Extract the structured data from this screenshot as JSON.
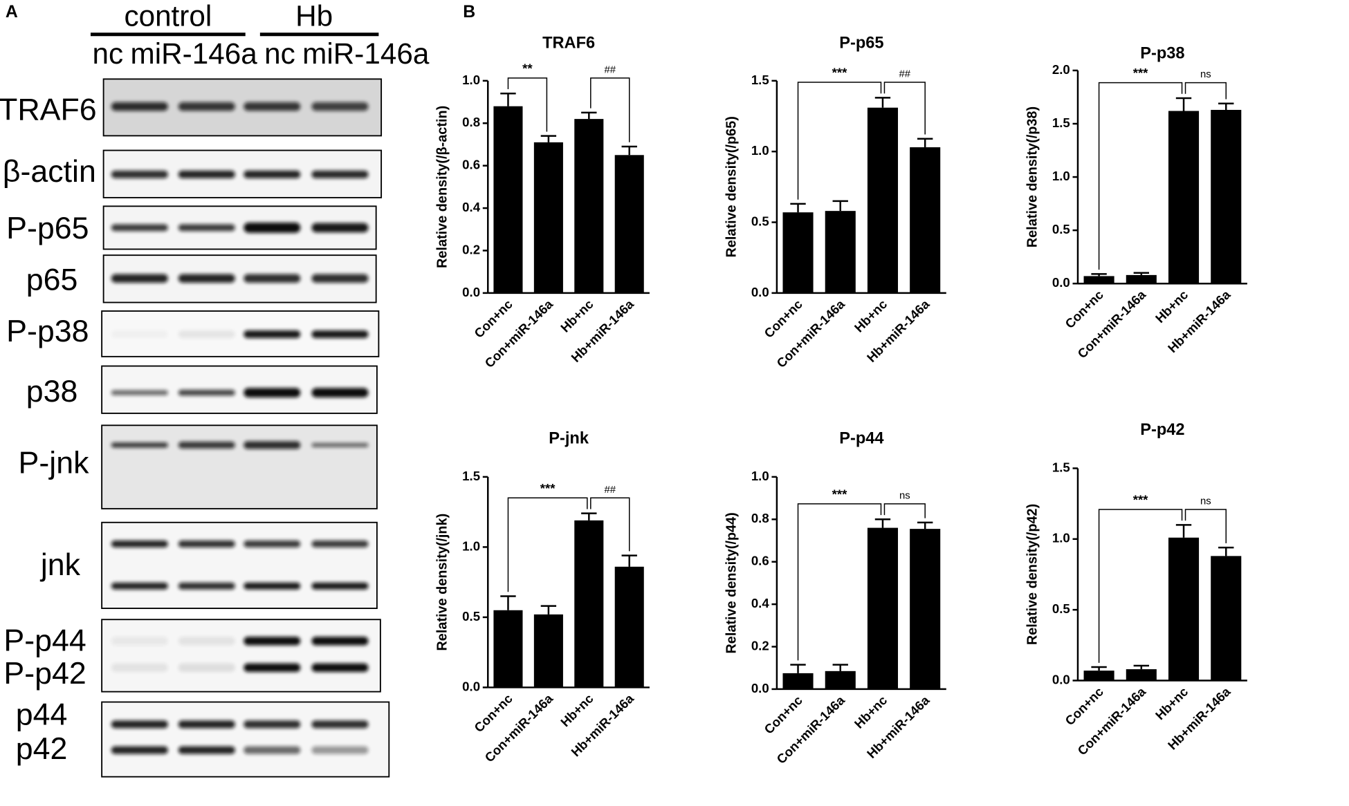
{
  "panel_a": {
    "label": "A",
    "groups": [
      "control",
      "Hb"
    ],
    "lanes": [
      "nc",
      "miR-146a",
      "nc",
      "miR-146a"
    ],
    "rows": [
      "TRAF6",
      "β-actin",
      "P-p65",
      "p65",
      "P-p38",
      "p38",
      "P-jnk",
      "jnk",
      "P-p44",
      "P-p42",
      "p44",
      "p42"
    ]
  },
  "panel_b": {
    "label": "B"
  },
  "chart_data": [
    {
      "type": "bar",
      "title": "TRAF6",
      "y_label": "Relative density(/β-actin)",
      "color": "#000000",
      "categories": [
        "Con+nc",
        "Con+miR-146a",
        "Hb+nc",
        "Hb+miR-146a"
      ],
      "values": [
        0.88,
        0.71,
        0.82,
        0.65
      ],
      "errors": [
        0.06,
        0.03,
        0.03,
        0.04
      ],
      "ylim": [
        0,
        1.0
      ],
      "yticks": [
        {
          "value": 0,
          "label": "0.0"
        },
        {
          "value": 0.2,
          "label": "0.2"
        },
        {
          "value": 0.4,
          "label": "0.4"
        },
        {
          "value": 0.6,
          "label": "0.6"
        },
        {
          "value": 0.8,
          "label": "0.8"
        },
        {
          "value": 1.0,
          "label": "1.0"
        }
      ],
      "annotations": [
        {
          "text": "**",
          "between": [
            "Con+nc",
            "Con+miR-146a"
          ]
        },
        {
          "text": "##",
          "between": [
            "Hb+nc",
            "Hb+miR-146a"
          ]
        }
      ]
    },
    {
      "type": "bar",
      "title": "P-p65",
      "y_label": "Relative density(/p65)",
      "color": "#000000",
      "categories": [
        "Con+nc",
        "Con+miR-146a",
        "Hb+nc",
        "Hb+miR-146a"
      ],
      "values": [
        0.57,
        0.58,
        1.31,
        1.03
      ],
      "errors": [
        0.06,
        0.07,
        0.07,
        0.06
      ],
      "ylim": [
        0,
        1.5
      ],
      "yticks": [
        {
          "value": 0,
          "label": "0.0"
        },
        {
          "value": 0.5,
          "label": "0.5"
        },
        {
          "value": 1.0,
          "label": "1.0"
        },
        {
          "value": 1.5,
          "label": "1.5"
        }
      ],
      "annotations": [
        {
          "text": "***",
          "between": [
            "Con+nc",
            "Hb+nc"
          ]
        },
        {
          "text": "##",
          "between": [
            "Hb+nc",
            "Hb+miR-146a"
          ]
        }
      ]
    },
    {
      "type": "bar",
      "title": "P-p38",
      "y_label": "Relative density(/p38)",
      "color": "#000000",
      "categories": [
        "Con+nc",
        "Con+miR-146a",
        "Hb+nc",
        "Hb+miR-146a"
      ],
      "values": [
        0.07,
        0.08,
        1.62,
        1.63
      ],
      "errors": [
        0.02,
        0.02,
        0.12,
        0.06
      ],
      "ylim": [
        0,
        2.0
      ],
      "yticks": [
        {
          "value": 0,
          "label": "0.0"
        },
        {
          "value": 0.5,
          "label": "0.5"
        },
        {
          "value": 1.0,
          "label": "1.0"
        },
        {
          "value": 1.5,
          "label": "1.5"
        },
        {
          "value": 2.0,
          "label": "2.0"
        }
      ],
      "annotations": [
        {
          "text": "***",
          "between": [
            "Con+nc",
            "Hb+nc"
          ]
        },
        {
          "text": "ns",
          "between": [
            "Hb+nc",
            "Hb+miR-146a"
          ]
        }
      ]
    },
    {
      "type": "bar",
      "title": "P-jnk",
      "y_label": "Relative density(/jnk)",
      "color": "#000000",
      "categories": [
        "Con+nc",
        "Con+miR-146a",
        "Hb+nc",
        "Hb+miR-146a"
      ],
      "values": [
        0.55,
        0.52,
        1.19,
        0.86
      ],
      "errors": [
        0.1,
        0.06,
        0.05,
        0.08
      ],
      "ylim": [
        0,
        1.5
      ],
      "yticks": [
        {
          "value": 0,
          "label": "0.0"
        },
        {
          "value": 0.5,
          "label": "0.5"
        },
        {
          "value": 1.0,
          "label": "1.0"
        },
        {
          "value": 1.5,
          "label": "1.5"
        }
      ],
      "annotations": [
        {
          "text": "***",
          "between": [
            "Con+nc",
            "Hb+nc"
          ]
        },
        {
          "text": "##",
          "between": [
            "Hb+nc",
            "Hb+miR-146a"
          ]
        }
      ]
    },
    {
      "type": "bar",
      "title": "P-p44",
      "y_label": "Relative density(/p44)",
      "color": "#000000",
      "categories": [
        "Con+nc",
        "Con+miR-146a",
        "Hb+nc",
        "Hb+miR-146a"
      ],
      "values": [
        0.075,
        0.085,
        0.76,
        0.755
      ],
      "errors": [
        0.04,
        0.03,
        0.04,
        0.03
      ],
      "ylim": [
        0,
        1.0
      ],
      "yticks": [
        {
          "value": 0,
          "label": "0.0"
        },
        {
          "value": 0.2,
          "label": "0.2"
        },
        {
          "value": 0.4,
          "label": "0.4"
        },
        {
          "value": 0.6,
          "label": "0.6"
        },
        {
          "value": 0.8,
          "label": "0.8"
        },
        {
          "value": 1.0,
          "label": "1.0"
        }
      ],
      "annotations": [
        {
          "text": "***",
          "between": [
            "Con+nc",
            "Hb+nc"
          ]
        },
        {
          "text": "ns",
          "between": [
            "Hb+nc",
            "Hb+miR-146a"
          ]
        }
      ]
    },
    {
      "type": "bar",
      "title": "P-p42",
      "y_label": "Relative density(/p42)",
      "color": "#000000",
      "categories": [
        "Con+nc",
        "Con+miR-146a",
        "Hb+nc",
        "Hb+miR-146a"
      ],
      "values": [
        0.07,
        0.08,
        1.01,
        0.88
      ],
      "errors": [
        0.025,
        0.025,
        0.09,
        0.06
      ],
      "ylim": [
        0,
        1.5
      ],
      "yticks": [
        {
          "value": 0,
          "label": "0.0"
        },
        {
          "value": 0.5,
          "label": "0.5"
        },
        {
          "value": 1.0,
          "label": "1.0"
        },
        {
          "value": 1.5,
          "label": "1.5"
        }
      ],
      "annotations": [
        {
          "text": "***",
          "between": [
            "Con+nc",
            "Hb+nc"
          ]
        },
        {
          "text": "ns",
          "between": [
            "Hb+nc",
            "Hb+miR-146a"
          ]
        }
      ]
    }
  ]
}
